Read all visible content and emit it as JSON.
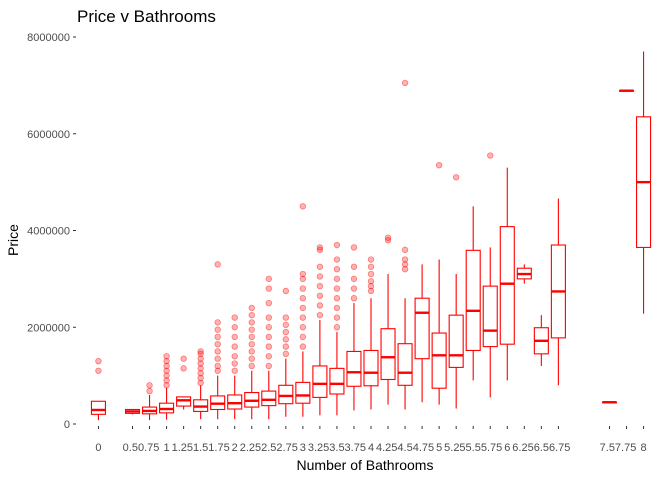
{
  "chart_data": {
    "type": "box",
    "title": "Price v Bathrooms",
    "xlabel": "Number of Bathrooms",
    "ylabel": "Price",
    "ylim": [
      0,
      8000000
    ],
    "yticks": [
      0,
      2000000,
      4000000,
      6000000,
      8000000
    ],
    "ytick_labels": [
      "0",
      "2000000",
      "4000000",
      "6000000",
      "8000000"
    ],
    "grid": false,
    "color": "#ff0000",
    "categories": [
      "0",
      "0.5",
      "0.75",
      "1",
      "1.25",
      "1.5",
      "1.75",
      "2",
      "2.25",
      "2.5",
      "2.75",
      "3",
      "3.25",
      "3.5",
      "3.75",
      "4",
      "4.25",
      "4.5",
      "4.75",
      "5",
      "5.25",
      "5.5",
      "5.75",
      "6",
      "6.25",
      "6.5",
      "6.75",
      "7.5",
      "7.75",
      "8"
    ],
    "boxes": [
      {
        "x": "0",
        "q1": 200000,
        "median": 290000,
        "q3": 470000,
        "whisker_low": 80000,
        "whisker_high": 470000,
        "outliers": [
          1300000,
          1100000
        ]
      },
      {
        "x": "0.5",
        "q1": 220000,
        "median": 260000,
        "q3": 300000,
        "whisker_low": 200000,
        "whisker_high": 300000,
        "outliers": []
      },
      {
        "x": "0.75",
        "q1": 210000,
        "median": 270000,
        "q3": 350000,
        "whisker_low": 80000,
        "whisker_high": 600000,
        "outliers": [
          800000,
          680000
        ]
      },
      {
        "x": "1",
        "q1": 230000,
        "median": 310000,
        "q3": 430000,
        "whisker_low": 90000,
        "whisker_high": 750000,
        "outliers": [
          800000,
          900000,
          1000000,
          1100000,
          1200000,
          1300000,
          1400000
        ]
      },
      {
        "x": "1.25",
        "q1": 370000,
        "median": 490000,
        "q3": 560000,
        "whisker_low": 300000,
        "whisker_high": 560000,
        "outliers": [
          1150000,
          1350000
        ]
      },
      {
        "x": "1.5",
        "q1": 260000,
        "median": 360000,
        "q3": 500000,
        "whisker_low": 100000,
        "whisker_high": 800000,
        "outliers": [
          850000,
          950000,
          1050000,
          1150000,
          1250000,
          1350000,
          1450000,
          1500000
        ]
      },
      {
        "x": "1.75",
        "q1": 300000,
        "median": 420000,
        "q3": 580000,
        "whisker_low": 100000,
        "whisker_high": 1000000,
        "outliers": [
          1100000,
          1200000,
          1350000,
          1500000,
          1650000,
          1800000,
          1950000,
          2100000,
          3300000
        ]
      },
      {
        "x": "2",
        "q1": 310000,
        "median": 430000,
        "q3": 600000,
        "whisker_low": 100000,
        "whisker_high": 1000000,
        "outliers": [
          1100000,
          1250000,
          1400000,
          1600000,
          1800000,
          2000000,
          2200000
        ]
      },
      {
        "x": "2.25",
        "q1": 350000,
        "median": 480000,
        "q3": 650000,
        "whisker_low": 100000,
        "whisker_high": 1100000,
        "outliers": [
          1200000,
          1350000,
          1500000,
          1650000,
          1800000,
          1950000,
          2100000,
          2250000,
          2400000
        ]
      },
      {
        "x": "2.5",
        "q1": 380000,
        "median": 500000,
        "q3": 680000,
        "whisker_low": 100000,
        "whisker_high": 1100000,
        "outliers": [
          1200000,
          1400000,
          1600000,
          1800000,
          2000000,
          2200000,
          2500000,
          2800000,
          3000000
        ]
      },
      {
        "x": "2.75",
        "q1": 420000,
        "median": 580000,
        "q3": 800000,
        "whisker_low": 150000,
        "whisker_high": 1350000,
        "outliers": [
          1450000,
          1600000,
          1750000,
          1900000,
          2050000,
          2200000,
          2750000
        ]
      },
      {
        "x": "3",
        "q1": 430000,
        "median": 590000,
        "q3": 860000,
        "whisker_low": 150000,
        "whisker_high": 1500000,
        "outliers": [
          1600000,
          1800000,
          2000000,
          2200000,
          2400000,
          2600000,
          2800000,
          3000000,
          3100000,
          4500000
        ]
      },
      {
        "x": "3.25",
        "q1": 550000,
        "median": 830000,
        "q3": 1200000,
        "whisker_low": 180000,
        "whisker_high": 2150000,
        "outliers": [
          2250000,
          2450000,
          2650000,
          2850000,
          3050000,
          3250000,
          3600000,
          3650000
        ]
      },
      {
        "x": "3.5",
        "q1": 620000,
        "median": 830000,
        "q3": 1150000,
        "whisker_low": 180000,
        "whisker_high": 1900000,
        "outliers": [
          2000000,
          2200000,
          2400000,
          2600000,
          2800000,
          3000000,
          3200000,
          3400000,
          3700000
        ]
      },
      {
        "x": "3.75",
        "q1": 780000,
        "median": 1070000,
        "q3": 1500000,
        "whisker_low": 280000,
        "whisker_high": 2500000,
        "outliers": [
          2600000,
          2800000,
          3000000,
          3250000,
          3650000
        ]
      },
      {
        "x": "4",
        "q1": 790000,
        "median": 1060000,
        "q3": 1520000,
        "whisker_low": 300000,
        "whisker_high": 2600000,
        "outliers": [
          2750000,
          2850000,
          2950000,
          3100000,
          3250000,
          3400000
        ]
      },
      {
        "x": "4.25",
        "q1": 920000,
        "median": 1380000,
        "q3": 1970000,
        "whisker_low": 400000,
        "whisker_high": 3100000,
        "outliers": [
          3800000,
          3850000
        ]
      },
      {
        "x": "4.5",
        "q1": 800000,
        "median": 1060000,
        "q3": 1660000,
        "whisker_low": 300000,
        "whisker_high": 2600000,
        "outliers": [
          3200000,
          3300000,
          3400000,
          3600000,
          7050000
        ]
      },
      {
        "x": "4.75",
        "q1": 1350000,
        "median": 2300000,
        "q3": 2600000,
        "whisker_low": 450000,
        "whisker_high": 3300000,
        "outliers": []
      },
      {
        "x": "5",
        "q1": 740000,
        "median": 1420000,
        "q3": 1880000,
        "whisker_low": 400000,
        "whisker_high": 3400000,
        "outliers": [
          5350000
        ]
      },
      {
        "x": "5.25",
        "q1": 1170000,
        "median": 1420000,
        "q3": 2250000,
        "whisker_low": 320000,
        "whisker_high": 3100000,
        "outliers": [
          5100000
        ]
      },
      {
        "x": "5.5",
        "q1": 1520000,
        "median": 2340000,
        "q3": 3590000,
        "whisker_low": 900000,
        "whisker_high": 4500000,
        "outliers": []
      },
      {
        "x": "5.75",
        "q1": 1600000,
        "median": 1930000,
        "q3": 2850000,
        "whisker_low": 550000,
        "whisker_high": 3650000,
        "outliers": [
          5550000
        ]
      },
      {
        "x": "6",
        "q1": 1650000,
        "median": 2900000,
        "q3": 4080000,
        "whisker_low": 900000,
        "whisker_high": 5300000,
        "outliers": []
      },
      {
        "x": "6.25",
        "q1": 3000000,
        "median": 3100000,
        "q3": 3220000,
        "whisker_low": 2900000,
        "whisker_high": 3300000,
        "outliers": []
      },
      {
        "x": "6.5",
        "q1": 1450000,
        "median": 1720000,
        "q3": 1990000,
        "whisker_low": 1200000,
        "whisker_high": 2250000,
        "outliers": []
      },
      {
        "x": "6.75",
        "q1": 1780000,
        "median": 2740000,
        "q3": 3700000,
        "whisker_low": 800000,
        "whisker_high": 4660000,
        "outliers": []
      },
      {
        "x": "7.5",
        "q1": 450000,
        "median": 450000,
        "q3": 450000,
        "whisker_low": 450000,
        "whisker_high": 450000,
        "outliers": []
      },
      {
        "x": "7.75",
        "q1": 6890000,
        "median": 6890000,
        "q3": 6890000,
        "whisker_low": 6890000,
        "whisker_high": 6890000,
        "outliers": []
      },
      {
        "x": "8",
        "q1": 3650000,
        "median": 5000000,
        "q3": 6350000,
        "whisker_low": 2280000,
        "whisker_high": 7700000,
        "outliers": []
      }
    ],
    "x_tick_text": [
      "0",
      "0.50.75",
      "1",
      "1.251.51.75",
      "2",
      "2.252.52.75",
      "3",
      "3.253.53.75",
      "4",
      "4.254.54.75",
      "5",
      "5.255.55.75",
      "6",
      "6.256.56.75",
      "7.57.75",
      "8"
    ],
    "x_tick_anchor": [
      "0",
      "0.625",
      "1",
      "1.5",
      "2",
      "2.5",
      "3",
      "3.5",
      "4",
      "4.5",
      "5",
      "5.5",
      "6",
      "6.5",
      "7.625",
      "8"
    ]
  }
}
